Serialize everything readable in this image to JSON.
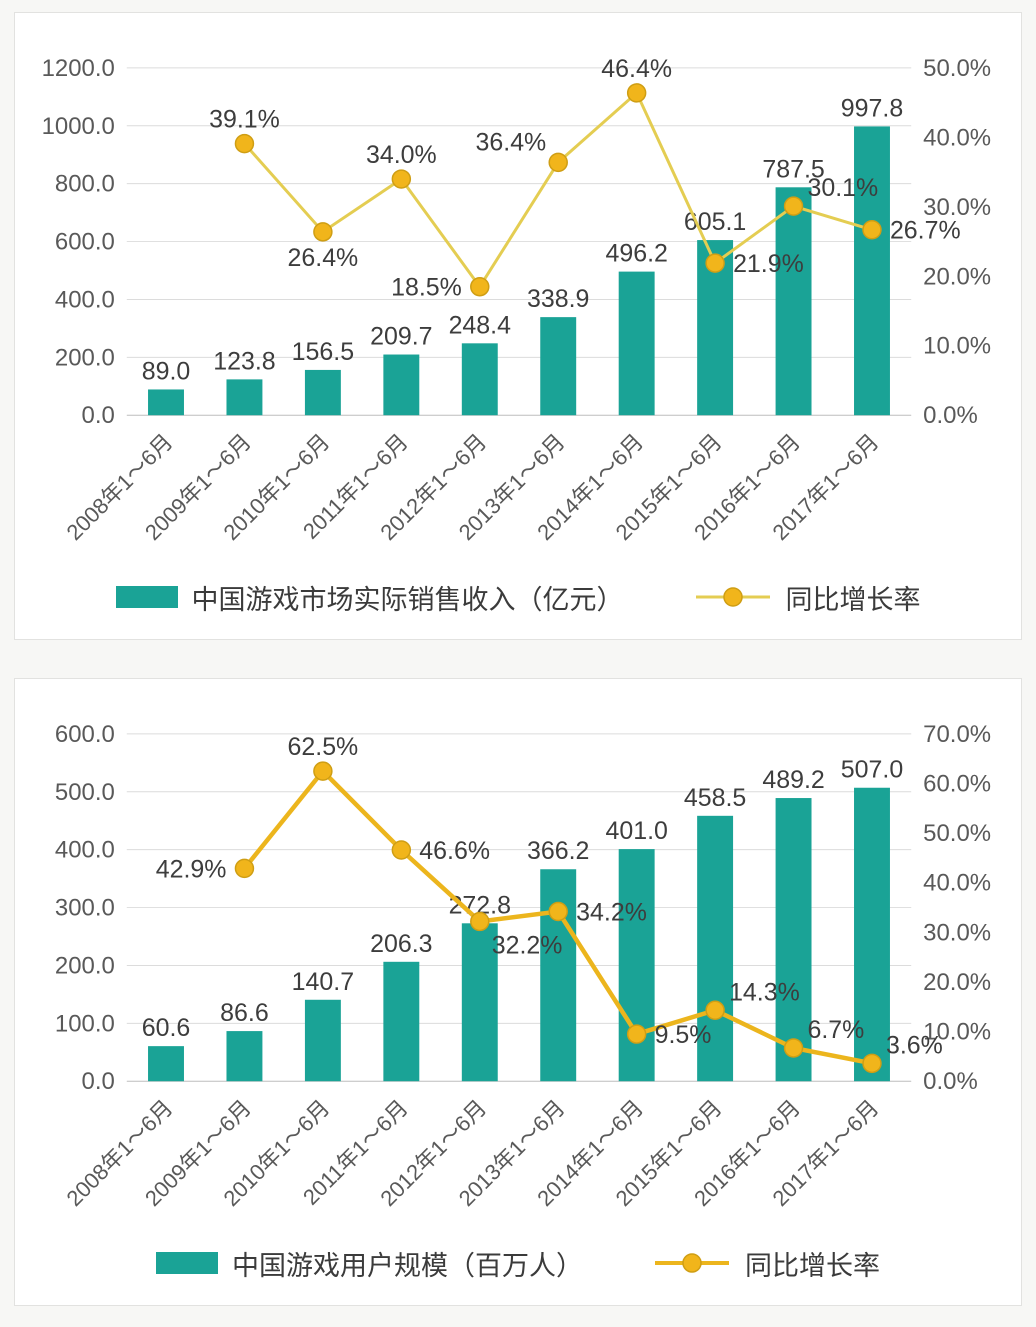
{
  "charts": [
    {
      "name": "revenue-chart",
      "type": "bar",
      "categories": [
        "2008年1～6月",
        "2009年1～6月",
        "2010年1～6月",
        "2011年1～6月",
        "2012年1～6月",
        "2013年1～6月",
        "2014年1～6月",
        "2015年1～6月",
        "2016年1～6月",
        "2017年1～6月"
      ],
      "bar_series": {
        "name": "中国游戏市场实际销售收入（亿元）",
        "values": [
          89.0,
          123.8,
          156.5,
          209.7,
          248.4,
          338.9,
          496.2,
          605.1,
          787.5,
          997.8
        ],
        "color": "#1aa396"
      },
      "line_series": {
        "name": "同比增长率",
        "start_index": 1,
        "values": [
          39.1,
          26.4,
          34.0,
          18.5,
          36.4,
          46.4,
          21.9,
          30.1,
          26.7
        ],
        "labels": [
          "39.1%",
          "26.4%",
          "34.0%",
          "18.5%",
          "36.4%",
          "46.4%",
          "21.9%",
          "30.1%",
          "26.7%"
        ],
        "label_pos": [
          "above",
          "below",
          "above",
          "left",
          "above-left",
          "above",
          "right",
          "above-right",
          "right"
        ],
        "color": "#e4cd52",
        "marker_color": "#f1b51b",
        "marker_edge": "#cf9e14",
        "width": 3
      },
      "left_axis": {
        "min": 0,
        "max": 1200,
        "step": 200,
        "labels": [
          "0.0",
          "200.0",
          "400.0",
          "600.0",
          "800.0",
          "1000.0",
          "1200.0"
        ]
      },
      "right_axis": {
        "min": 0,
        "max": 50,
        "step": 10,
        "labels": [
          "0.0%",
          "10.0%",
          "20.0%",
          "30.0%",
          "40.0%",
          "50.0%"
        ]
      }
    },
    {
      "name": "users-chart",
      "type": "bar",
      "categories": [
        "2008年1～6月",
        "2009年1～6月",
        "2010年1～6月",
        "2011年1～6月",
        "2012年1～6月",
        "2013年1～6月",
        "2014年1～6月",
        "2015年1～6月",
        "2016年1～6月",
        "2017年1～6月"
      ],
      "bar_series": {
        "name": "中国游戏用户规模（百万人）",
        "values": [
          60.6,
          86.6,
          140.7,
          206.3,
          272.8,
          366.2,
          401.0,
          458.5,
          489.2,
          507.0
        ],
        "color": "#1aa396"
      },
      "line_series": {
        "name": "同比增长率",
        "start_index": 1,
        "values": [
          42.9,
          62.5,
          46.6,
          32.2,
          34.2,
          9.5,
          14.3,
          6.7,
          3.6
        ],
        "labels": [
          "42.9%",
          "62.5%",
          "46.6%",
          "32.2%",
          "34.2%",
          "9.5%",
          "14.3%",
          "6.7%",
          "3.6%"
        ],
        "label_pos": [
          "left",
          "above",
          "right",
          "below-right",
          "right",
          "right",
          "above-right",
          "above-right",
          "above-right"
        ],
        "color": "#ecb51d",
        "marker_color": "#f1b51b",
        "marker_edge": "#cf9e14",
        "width": 4.5
      },
      "left_axis": {
        "min": 0,
        "max": 600,
        "step": 100,
        "labels": [
          "0.0",
          "100.0",
          "200.0",
          "300.0",
          "400.0",
          "500.0",
          "600.0"
        ]
      },
      "right_axis": {
        "min": 0,
        "max": 70,
        "step": 10,
        "labels": [
          "0.0%",
          "10.0%",
          "20.0%",
          "30.0%",
          "40.0%",
          "50.0%",
          "60.0%",
          "70.0%"
        ]
      }
    }
  ]
}
